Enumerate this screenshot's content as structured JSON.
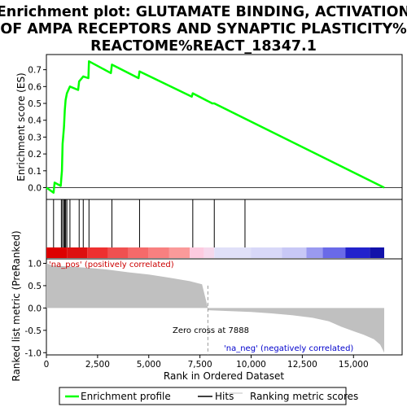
{
  "chart_data": {
    "type": "line",
    "title_lines": [
      "Enrichment plot: GLUTAMATE BINDING, ACTIVATION",
      "OF AMPA RECEPTORS AND SYNAPTIC PLASTICITY%",
      "REACTOME%REACT_18347.1"
    ],
    "es_panel": {
      "ylabel": "Enrichment score (ES)",
      "ylim": [
        -0.07,
        0.79
      ],
      "yticks": [
        "0.0",
        "0.1",
        "0.2",
        "0.3",
        "0.4",
        "0.5",
        "0.6",
        "0.7"
      ],
      "line_color": "#00ff00",
      "series": [
        {
          "name": "Enrichment profile",
          "x": [
            0,
            350,
            400,
            700,
            730,
            760,
            790,
            820,
            860,
            900,
            940,
            1000,
            1150,
            1550,
            1600,
            1800,
            2050,
            2080,
            3150,
            3200,
            4500,
            4550,
            7100,
            7150,
            8100,
            8200,
            9700,
            16500
          ],
          "y": [
            0.0,
            -0.03,
            0.03,
            0.01,
            0.06,
            0.1,
            0.26,
            0.3,
            0.36,
            0.46,
            0.52,
            0.56,
            0.6,
            0.58,
            0.63,
            0.66,
            0.65,
            0.75,
            0.68,
            0.73,
            0.65,
            0.69,
            0.54,
            0.56,
            0.5,
            0.5,
            0.41,
            0.0
          ]
        }
      ]
    },
    "hits_panel": {
      "hit_positions": [
        350,
        730,
        790,
        860,
        900,
        940,
        1000,
        1150,
        1600,
        1800,
        2080,
        3200,
        4550,
        7150,
        8200,
        9700
      ]
    },
    "color_bar": {
      "stops": [
        {
          "at": 0,
          "color": "#dd0000"
        },
        {
          "at": 1000,
          "color": "#dd1010"
        },
        {
          "at": 2000,
          "color": "#ee3030"
        },
        {
          "at": 3000,
          "color": "#f05050"
        },
        {
          "at": 4000,
          "color": "#f56a6a"
        },
        {
          "at": 5000,
          "color": "#f88080"
        },
        {
          "at": 6000,
          "color": "#fa9a9a"
        },
        {
          "at": 7000,
          "color": "#fdcbe0"
        },
        {
          "at": 7700,
          "color": "#f5d8ec"
        },
        {
          "at": 8200,
          "color": "#e0e0f8"
        },
        {
          "at": 10000,
          "color": "#d8d8f8"
        },
        {
          "at": 11500,
          "color": "#c8c8f6"
        },
        {
          "at": 12700,
          "color": "#9a9af0"
        },
        {
          "at": 13500,
          "color": "#6a6ae8"
        },
        {
          "at": 14600,
          "color": "#2222cc"
        },
        {
          "at": 15800,
          "color": "#1111aa"
        },
        {
          "at": 16500,
          "color": "#000088"
        }
      ]
    },
    "rank_panel": {
      "ylabel": "Ranked list metric (PreRanked)",
      "xlabel": "Rank in Ordered Dataset",
      "xlim": [
        0,
        16500
      ],
      "ylim": [
        -1.05,
        1.1
      ],
      "yticks": [
        "-1.0",
        "-0.5",
        "0.0",
        "0.5",
        "1.0"
      ],
      "xticks": [
        "0",
        "2,500",
        "5,000",
        "7,500",
        "10,000",
        "12,500",
        "15,000"
      ],
      "zero_cross": 7888,
      "metric_color": "#c0c0c0",
      "metric_x": [
        0,
        300,
        1000,
        2000,
        3000,
        4000,
        5000,
        6000,
        7000,
        7600,
        7888,
        7890,
        9000,
        10000,
        11000,
        12000,
        13000,
        13800,
        14400,
        15000,
        15500,
        16000,
        16300,
        16500
      ],
      "metric_y": [
        1.0,
        0.95,
        0.93,
        0.9,
        0.86,
        0.8,
        0.75,
        0.68,
        0.6,
        0.53,
        0.0,
        -0.05,
        -0.07,
        -0.09,
        -0.12,
        -0.16,
        -0.22,
        -0.3,
        -0.42,
        -0.52,
        -0.6,
        -0.7,
        -0.82,
        -1.0
      ]
    },
    "annotations": {
      "pos_label": "'na_pos' (positively correlated)",
      "neg_label": "'na_neg' (negatively correlated)",
      "zero_cross_label": "Zero cross at 7888",
      "pos_color": "#cc0000",
      "neg_color": "#0000cc"
    },
    "legend": {
      "items": [
        "Enrichment profile",
        "Hits",
        "Ranking metric scores"
      ]
    }
  }
}
